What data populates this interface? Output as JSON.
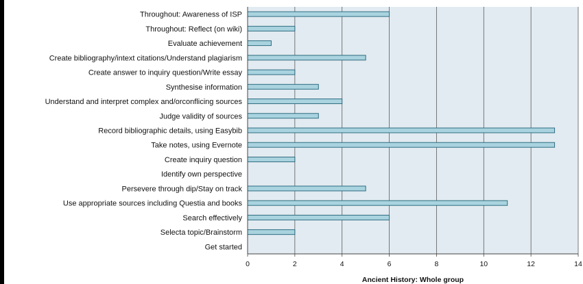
{
  "chart_data": {
    "type": "bar",
    "orientation": "horizontal",
    "categories": [
      "Throughout: Awareness of ISP",
      "Throughout: Reflect (on wiki)",
      "Evaluate achievement",
      "Create bibliography/intext citations/Understand plagiarism",
      "Create answer to inquiry question/Write essay",
      "Synthesise information",
      "Understand and interpret complex and/orconflicing sources",
      "Judge validity of sources",
      "Record bibliographic details, using Easybib",
      "Take notes, using Evernote",
      "Create inquiry question",
      "Identify own perspective",
      "Persevere through dip/Stay on track",
      "Use appropriate sources including Questia and books",
      "Search effectively",
      "Selecta topic/Brainstorm",
      "Get started"
    ],
    "values": [
      6,
      2,
      1,
      5,
      2,
      3,
      4,
      3,
      13,
      13,
      2,
      0,
      5,
      11,
      6,
      2,
      0
    ],
    "xlim": [
      0,
      14
    ],
    "xticks": [
      "0",
      "2",
      "4",
      "6",
      "8",
      "10",
      "12",
      "14"
    ],
    "xlabel": "Ancient History: Whole group",
    "ylabel": "",
    "title": "",
    "grid": "vertical",
    "legend": "none",
    "colors": {
      "bar_fill": "#a9d3df",
      "bar_stroke": "#2e6c80",
      "plot_background": "#e2ebf1",
      "gridline": "#5a5a5a"
    }
  }
}
